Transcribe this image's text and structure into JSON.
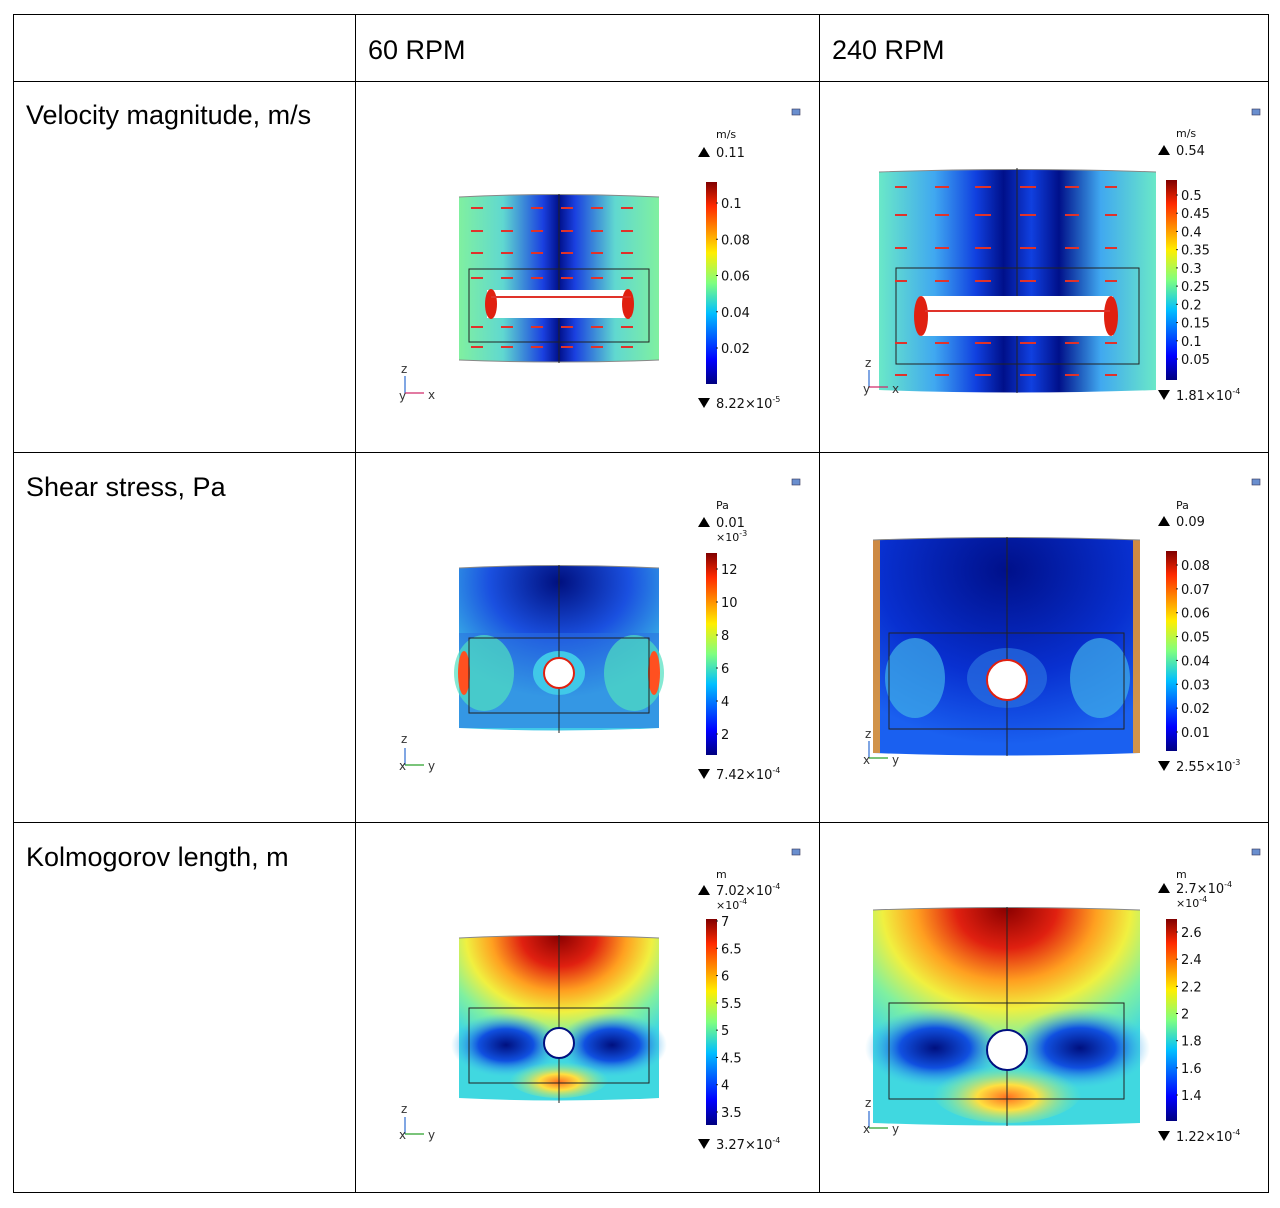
{
  "table": {
    "header": {
      "col0": "",
      "col1": "60 RPM",
      "col2": "240 RPM"
    },
    "rows": [
      {
        "label": "Velocity magnitude, m/s",
        "rpm60": {
          "unit": "m/s",
          "max": "0.11",
          "min": "8.22×10",
          "min_exp": "-5",
          "ticks": [
            "0.1",
            "0.08",
            "0.06",
            "0.04",
            "0.02"
          ],
          "axes": [
            "z",
            "y",
            "x"
          ]
        },
        "rpm240": {
          "unit": "m/s",
          "max": "0.54",
          "min": "1.81×10",
          "min_exp": "-4",
          "ticks": [
            "0.5",
            "0.45",
            "0.4",
            "0.35",
            "0.3",
            "0.25",
            "0.2",
            "0.15",
            "0.1",
            "0.05"
          ],
          "axes": [
            "z",
            "y",
            "x"
          ]
        }
      },
      {
        "label": "Shear stress, Pa",
        "rpm60": {
          "unit": "Pa",
          "max": "0.01",
          "scale": "×10",
          "scale_exp": "-3",
          "min": "7.42×10",
          "min_exp": "-4",
          "ticks": [
            "12",
            "10",
            "8",
            "6",
            "4",
            "2"
          ],
          "axes": [
            "z",
            "x",
            "y"
          ]
        },
        "rpm240": {
          "unit": "Pa",
          "max": "0.09",
          "min": "2.55×10",
          "min_exp": "-3",
          "ticks": [
            "0.08",
            "0.07",
            "0.06",
            "0.05",
            "0.04",
            "0.03",
            "0.02",
            "0.01"
          ],
          "axes": [
            "z",
            "x",
            "y"
          ]
        }
      },
      {
        "label": "Kolmogorov length, m",
        "rpm60": {
          "unit": "m",
          "max": "7.02×10",
          "max_exp": "-4",
          "scale": "×10",
          "scale_exp": "-4",
          "min": "3.27×10",
          "min_exp": "-4",
          "ticks": [
            "7",
            "6.5",
            "6",
            "5.5",
            "5",
            "4.5",
            "4",
            "3.5"
          ],
          "axes": [
            "z",
            "x",
            "y"
          ]
        },
        "rpm240": {
          "unit": "m",
          "max": "2.7×10",
          "max_exp": "-4",
          "scale": "×10",
          "scale_exp": "-4",
          "min": "1.22×10",
          "min_exp": "-4",
          "ticks": [
            "2.6",
            "2.4",
            "2.2",
            "2",
            "1.8",
            "1.6",
            "1.4"
          ],
          "axes": [
            "z",
            "x",
            "y"
          ]
        }
      }
    ]
  },
  "colors": {
    "jet_low": "#00007f",
    "jet_mid": "#7fff7f",
    "jet_high": "#7f0000",
    "arrow": "#e0322a"
  }
}
